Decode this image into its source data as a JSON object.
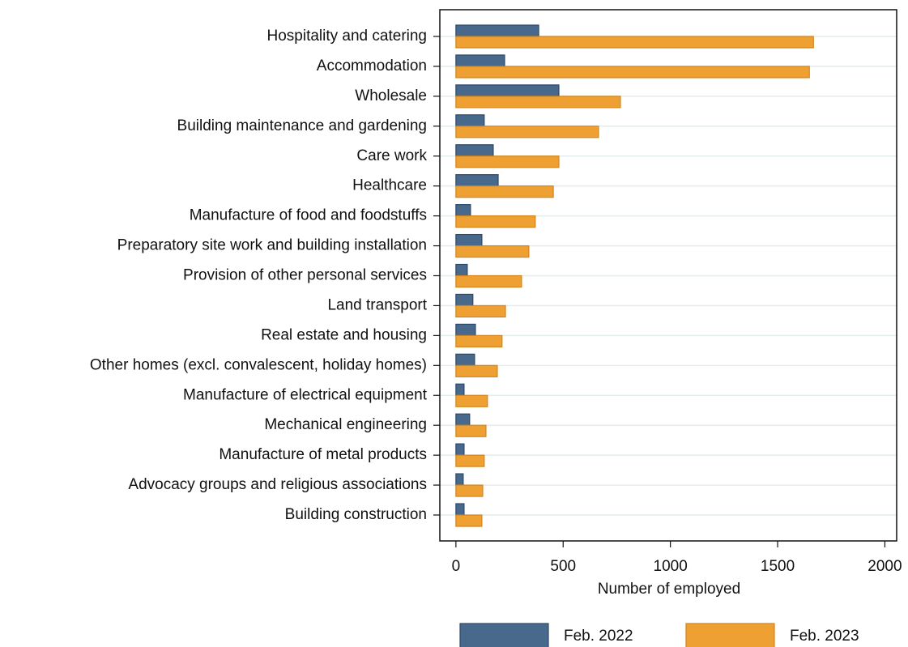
{
  "chart_data": {
    "type": "bar",
    "orientation": "horizontal",
    "x_label": "Number of employed",
    "categories": [
      "Hospitality and catering",
      "Accommodation",
      "Wholesale",
      "Building maintenance and gardening",
      "Care work",
      "Healthcare",
      "Manufacture of food and foodstuffs",
      "Preparatory site work and building installation",
      "Provision of other personal services",
      "Land transport",
      "Real estate and housing",
      "Other homes (excl. convalescent, holiday homes)",
      "Manufacture of electrical equipment",
      "Mechanical engineering",
      "Manufacture of metal products",
      "Advocacy groups and religious associations",
      "Building construction"
    ],
    "series": [
      {
        "name": "Feb. 2022",
        "color": "#49698c",
        "values": [
          386,
          227,
          480,
          132,
          174,
          197,
          68,
          121,
          53,
          79,
          91,
          87,
          38,
          64,
          38,
          34,
          38
        ]
      },
      {
        "name": "Feb. 2023",
        "color": "#eea033",
        "values": [
          1667,
          1648,
          767,
          665,
          480,
          454,
          370,
          340,
          306,
          231,
          215,
          193,
          147,
          140,
          132,
          125,
          121
        ]
      }
    ],
    "xlim": [
      -75,
      2055
    ],
    "xticks": [
      0,
      500,
      1000,
      1500,
      2000
    ],
    "legend": "bottom"
  }
}
